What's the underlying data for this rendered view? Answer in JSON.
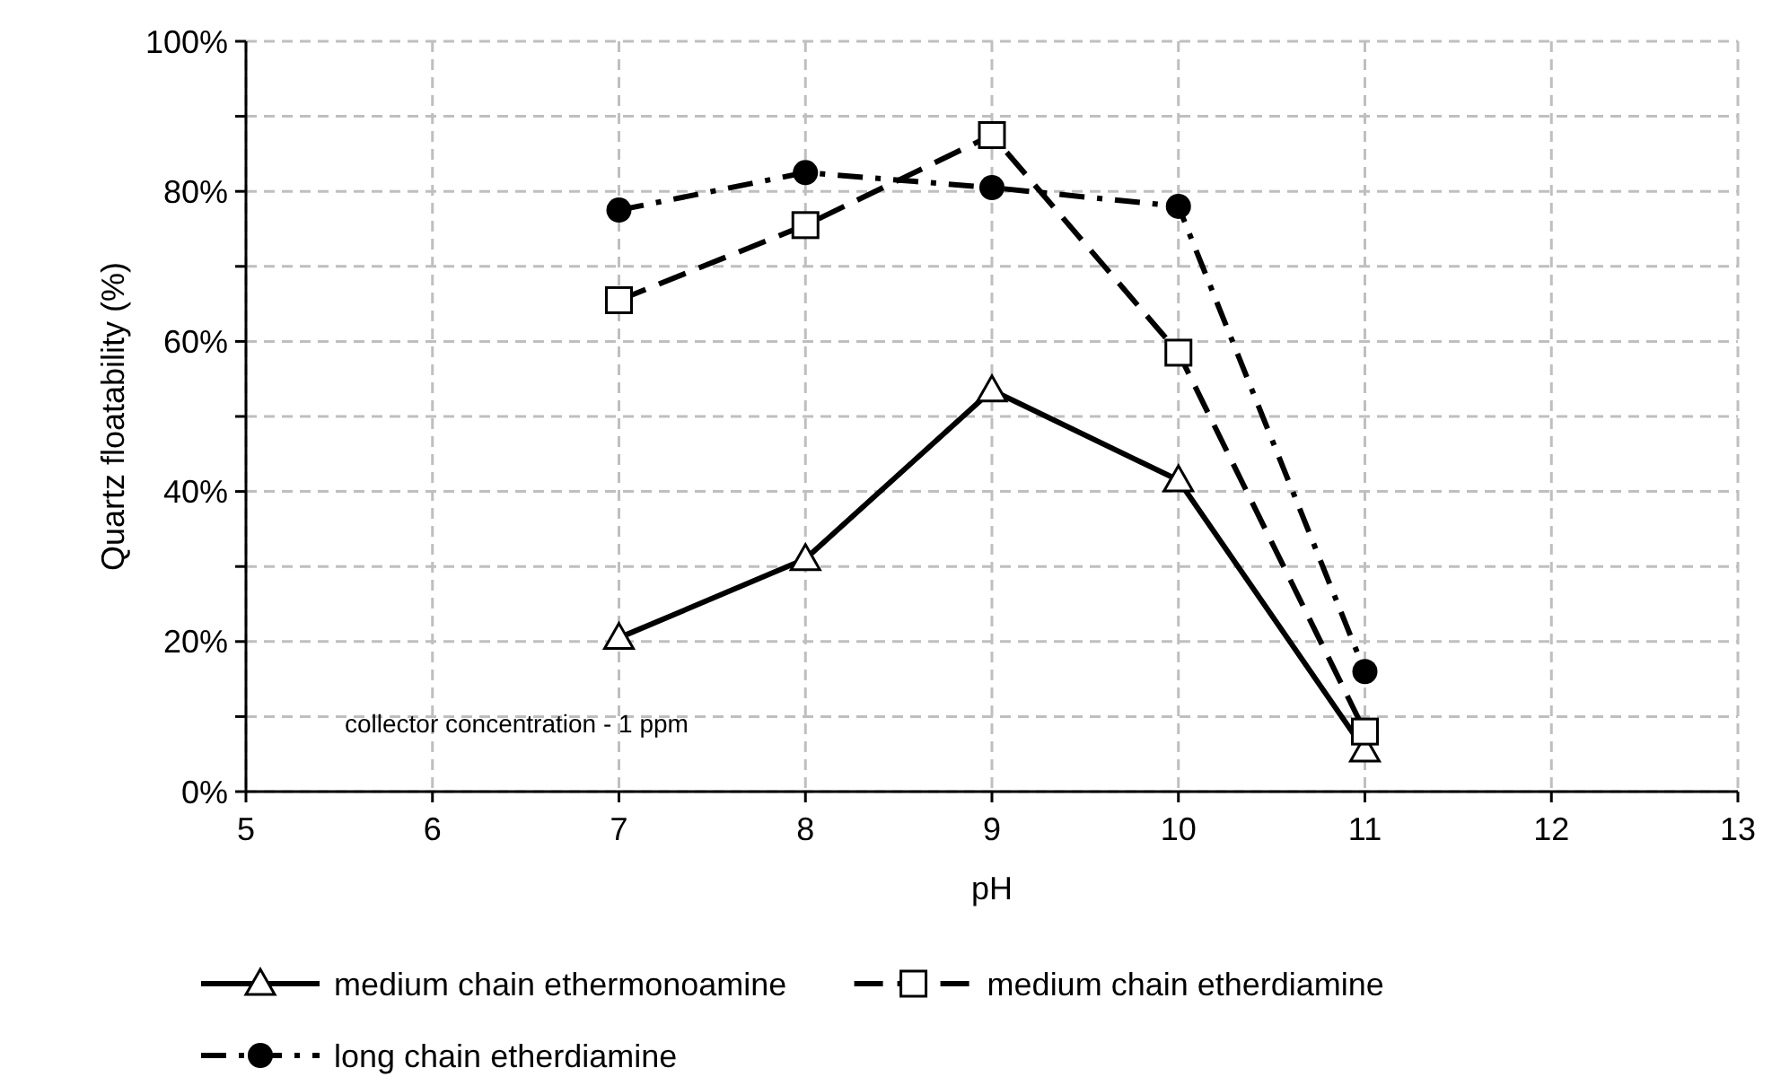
{
  "chart_data": {
    "type": "line",
    "xlabel": "pH",
    "ylabel": "Quartz floatability (%)",
    "x": [
      7,
      8,
      9,
      10,
      11
    ],
    "xlim": [
      5,
      13
    ],
    "xticks": [
      5,
      6,
      7,
      8,
      9,
      10,
      11,
      12,
      13
    ],
    "ylim": [
      0,
      100
    ],
    "yticks": [
      {
        "value": 0,
        "label": "0%"
      },
      {
        "value": 10,
        "label": null
      },
      {
        "value": 20,
        "label": "20%"
      },
      {
        "value": 30,
        "label": null
      },
      {
        "value": 40,
        "label": "40%"
      },
      {
        "value": 50,
        "label": null
      },
      {
        "value": 60,
        "label": "60%"
      },
      {
        "value": 70,
        "label": null
      },
      {
        "value": 80,
        "label": "80%"
      },
      {
        "value": 90,
        "label": null
      },
      {
        "value": 100,
        "label": "100%"
      }
    ],
    "grid": true,
    "legend": "bottom",
    "annotations": [
      "collector concentration - 1 ppm"
    ],
    "series": [
      {
        "name": "medium chain ethermonoamine",
        "color": "#000000",
        "marker": "triangle",
        "line_style": "solid",
        "values": [
          20.5,
          31,
          53.5,
          41.5,
          5.5
        ]
      },
      {
        "name": "medium chain etherdiamine",
        "color": "#000000",
        "marker": "square",
        "line_style": "dashed",
        "values": [
          65.5,
          75.5,
          87.5,
          58.5,
          8
        ]
      },
      {
        "name": "long chain etherdiamine",
        "color": "#000000",
        "marker": "circle",
        "line_style": "dashdot",
        "values": [
          77.5,
          82.5,
          80.5,
          78,
          16
        ]
      }
    ]
  }
}
